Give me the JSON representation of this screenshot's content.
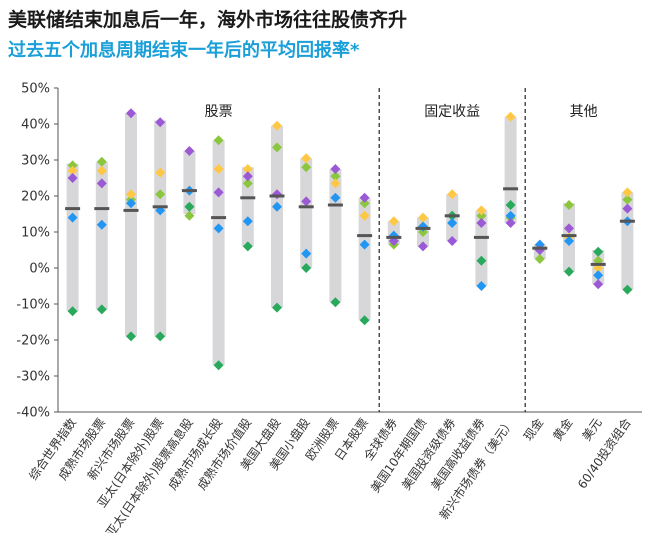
{
  "title": "美联储结束加息后一年，海外市场往往股债齐升",
  "subtitle": "过去五个加息周期结束一年后的平均回报率*",
  "chart_data": {
    "type": "range-dot",
    "ylim": [
      -40,
      50
    ],
    "yticks": [
      "50%",
      "40%",
      "30%",
      "20%",
      "10%",
      "0%",
      "-10%",
      "-20%",
      "-30%",
      "-40%"
    ],
    "ytick_values": [
      50,
      40,
      30,
      20,
      10,
      0,
      -10,
      -20,
      -30,
      -40
    ],
    "group_labels": [
      "股票",
      "固定收益",
      "其他"
    ],
    "categories": [
      "综合世界指数",
      "成熟市场股票",
      "新兴市场股票",
      "亚太(日本除外)股票",
      "亚太(日本除外)股票高息股",
      "成熟市场成长股",
      "成熟市场价值股",
      "美国大盘股",
      "美国小盘股",
      "欧洲股票",
      "日本股票",
      "全球债券",
      "美国10年期国债",
      "美国投资级债券",
      "美国高收益债券",
      "新兴市场债券（美元）",
      "现金",
      "黄金",
      "美元",
      "60/40投资组合"
    ],
    "group_of_category": [
      0,
      0,
      0,
      0,
      0,
      0,
      0,
      0,
      0,
      0,
      0,
      1,
      1,
      1,
      1,
      1,
      2,
      2,
      2,
      2
    ],
    "range_low": [
      -12,
      -11.5,
      -19,
      -19,
      15,
      -27,
      6,
      -11,
      0,
      -9.5,
      -14.5,
      6.5,
      6,
      7.5,
      -5,
      12.5,
      2.5,
      -1,
      -4.5,
      -6
    ],
    "range_high": [
      29,
      29.5,
      43,
      41,
      32.5,
      35.5,
      28,
      39.5,
      30.5,
      27.5,
      19.5,
      13,
      14,
      20.5,
      16,
      42,
      6.5,
      18,
      5,
      21
    ],
    "average": [
      16.5,
      16.5,
      16,
      17,
      21.5,
      14,
      19.5,
      20,
      17,
      17.5,
      9,
      8.5,
      11,
      14.5,
      8.5,
      22,
      5.5,
      9,
      1,
      13
    ],
    "dot_colors": [
      "#8cc63f",
      "#28a95c",
      "#ffc844",
      "#2196f3",
      "#9b59d6"
    ],
    "dots": [
      [
        28.5,
        -12,
        27,
        14,
        25
      ],
      [
        29.5,
        -11.5,
        27,
        12,
        23.5
      ],
      [
        19,
        -19,
        20.5,
        18,
        43
      ],
      [
        20.5,
        -19,
        26.5,
        16,
        40.5
      ],
      [
        14.5,
        17,
        21.5,
        21.5,
        32.5
      ],
      [
        35.5,
        -27,
        27.5,
        11,
        21
      ],
      [
        23.5,
        6,
        27.5,
        13,
        25.5
      ],
      [
        33.5,
        -11,
        39.5,
        17,
        20.5
      ],
      [
        28,
        0,
        30.5,
        4,
        18.5
      ],
      [
        25.5,
        -9.5,
        23.5,
        19.5,
        27.5
      ],
      [
        18,
        -14.5,
        14.5,
        6.5,
        19.5
      ],
      [
        6.5,
        7.5,
        13,
        9,
        7.5
      ],
      [
        10,
        11.5,
        14,
        11.5,
        6
      ],
      [
        14.5,
        14.5,
        20.5,
        12.5,
        7.5
      ],
      [
        14.5,
        2,
        16,
        -5,
        12.5
      ],
      [
        14,
        17.5,
        42,
        14.5,
        12.5
      ],
      [
        2.5,
        5,
        6,
        6.5,
        5
      ],
      [
        17.5,
        -1,
        8.5,
        7.5,
        11
      ],
      [
        2,
        4.5,
        0,
        -2,
        -4.5
      ],
      [
        19,
        -6,
        21,
        13,
        16.5
      ]
    ],
    "grid": false,
    "legend": "none"
  }
}
